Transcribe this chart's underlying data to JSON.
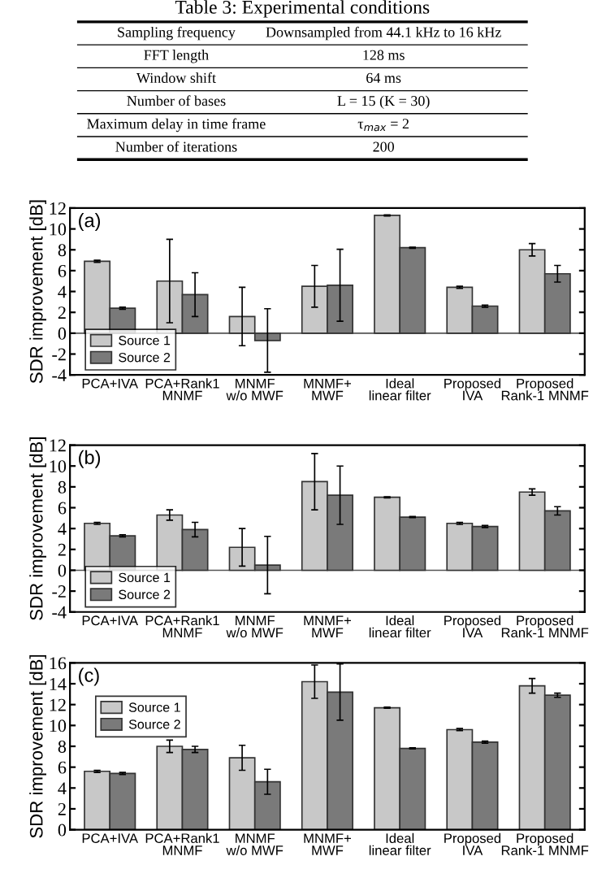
{
  "chart_data": [
    {
      "type": "other",
      "title": "Table 3: Experimental conditions",
      "annotations": [
        "Sampling frequency",
        "Downsampled from 44.1 kHz to 16 kHz",
        "FFT length",
        "128 ms",
        "Window shift",
        "64 ms",
        "Number of bases",
        "L = 15 (K = 30)",
        "Maximum delay in time frame",
        "τ$_{max}$ = 2",
        "Number of iterations",
        "200"
      ]
    },
    {
      "type": "bar",
      "ylabel": "SDR improvement [dB]",
      "annotations": [
        "(a)"
      ],
      "categories": [
        "PCA+IVA",
        "PCA+Rank1\nMNMF",
        "MNMF\nw/o MWF",
        "MNMF+\nMWF",
        "Ideal\nlinear filter",
        "Proposed\nIVA",
        "Proposed\nRank-1 MNMF"
      ],
      "series": [
        {
          "name": "Source 1",
          "color": "#c8c8c8",
          "values": [
            6.9,
            5.0,
            1.6,
            4.5,
            11.3,
            4.4,
            8.0
          ],
          "errors": [
            0.1,
            4.0,
            2.8,
            2.0,
            0.05,
            0.1,
            0.6
          ]
        },
        {
          "name": "Source 2",
          "color": "#7a7a7a",
          "values": [
            2.4,
            3.7,
            -0.7,
            4.6,
            8.2,
            2.6,
            5.7
          ],
          "errors": [
            0.1,
            2.1,
            3.05,
            3.45,
            0.05,
            0.1,
            0.8
          ]
        }
      ],
      "ylim": [
        -4,
        12
      ],
      "yticks": [
        -4,
        -2,
        0,
        2,
        4,
        6,
        8,
        10,
        12
      ],
      "ref_lines": [
        {
          "axis": "y",
          "value": 0
        }
      ],
      "legend": "bottom left",
      "grid": false
    },
    {
      "type": "bar",
      "ylabel": "SDR improvement [dB]",
      "annotations": [
        "(b)"
      ],
      "categories": [
        "PCA+IVA",
        "PCA+Rank1\nMNMF",
        "MNMF\nw/o MWF",
        "MNMF+\nMWF",
        "Ideal\nlinear filter",
        "Proposed\nIVA",
        "Proposed\nRank-1 MNMF"
      ],
      "series": [
        {
          "name": "Source 1",
          "color": "#c8c8c8",
          "values": [
            4.5,
            5.3,
            2.2,
            8.5,
            7.0,
            4.5,
            7.5
          ],
          "errors": [
            0.1,
            0.5,
            1.8,
            2.7,
            0.05,
            0.1,
            0.3
          ]
        },
        {
          "name": "Source 2",
          "color": "#7a7a7a",
          "values": [
            3.3,
            3.9,
            0.5,
            7.2,
            5.1,
            4.2,
            5.7
          ],
          "errors": [
            0.1,
            0.7,
            2.75,
            2.8,
            0.05,
            0.1,
            0.4
          ]
        }
      ],
      "ylim": [
        -4,
        12
      ],
      "yticks": [
        -4,
        -2,
        0,
        2,
        4,
        6,
        8,
        10,
        12
      ],
      "ref_lines": [
        {
          "axis": "y",
          "value": 0
        }
      ],
      "legend": "bottom left",
      "grid": false
    },
    {
      "type": "bar",
      "ylabel": "SDR improvement [dB]",
      "annotations": [
        "(c)"
      ],
      "categories": [
        "PCA+IVA",
        "PCA+Rank1\nMNMF",
        "MNMF\nw/o MWF",
        "MNMF+\nMWF",
        "Ideal\nlinear filter",
        "Proposed\nIVA",
        "Proposed\nRank-1 MNMF"
      ],
      "series": [
        {
          "name": "Source 1",
          "color": "#c8c8c8",
          "values": [
            5.6,
            8.0,
            6.9,
            14.2,
            11.7,
            9.6,
            13.8
          ],
          "errors": [
            0.1,
            0.6,
            1.2,
            1.6,
            0.05,
            0.1,
            0.7
          ]
        },
        {
          "name": "Source 2",
          "color": "#7a7a7a",
          "values": [
            5.4,
            7.7,
            4.6,
            13.2,
            7.8,
            8.4,
            12.9
          ],
          "errors": [
            0.1,
            0.3,
            1.2,
            2.7,
            0.05,
            0.1,
            0.2
          ]
        }
      ],
      "ylim": [
        0,
        16
      ],
      "yticks": [
        0,
        2,
        4,
        6,
        8,
        10,
        12,
        14,
        16
      ],
      "legend": "top left",
      "grid": false
    }
  ]
}
